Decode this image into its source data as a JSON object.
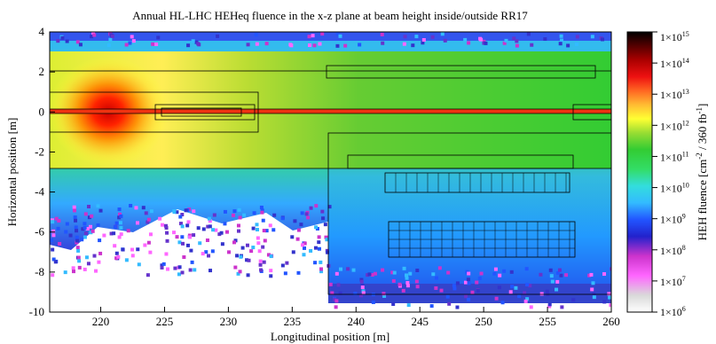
{
  "chart_data": {
    "type": "heatmap",
    "title": "Annual HL-LHC HEHeq fluence in the x-z plane at beam height inside/outside RR17",
    "xlabel": "Longitudinal position [m]",
    "ylabel": "Horizontal position [m]",
    "xlim": [
      216,
      260
    ],
    "ylim": [
      -10,
      4
    ],
    "x_ticks": [
      "220",
      "225",
      "230",
      "235",
      "240",
      "245",
      "250",
      "255",
      "260"
    ],
    "y_ticks": [
      "4",
      "2",
      "0",
      "-2",
      "-4",
      "-6",
      "-8",
      "-10"
    ],
    "colorbar": {
      "label": "HEH fluence [cm",
      "label_sup1": "-2",
      "label_mid": " / 360 fb",
      "label_sup2": "-1",
      "label_end": "]",
      "scale": "log",
      "range": [
        1000000.0,
        1000000000000000.0
      ],
      "ticks": [
        {
          "base": "1×10",
          "exp": "15"
        },
        {
          "base": "1×10",
          "exp": "14"
        },
        {
          "base": "1×10",
          "exp": "13"
        },
        {
          "base": "1×10",
          "exp": "12"
        },
        {
          "base": "1×10",
          "exp": "11"
        },
        {
          "base": "1×10",
          "exp": "10"
        },
        {
          "base": "1×10",
          "exp": "9"
        },
        {
          "base": "1×10",
          "exp": "8"
        },
        {
          "base": "1×10",
          "exp": "7"
        },
        {
          "base": "1×10",
          "exp": "6"
        }
      ],
      "colors": [
        "#ffffff",
        "#d9d9d9",
        "#ff66ff",
        "#cc33cc",
        "#2222cc",
        "#2255ff",
        "#33bbff",
        "#33dddd",
        "#33dd66",
        "#33cc33",
        "#99dd33",
        "#ffff33",
        "#ffbb33",
        "#ff6622",
        "#ee1111",
        "#aa0000",
        "#550000",
        "#000000"
      ]
    },
    "features": {
      "hotspot_center": [
        221,
        0
      ],
      "hotspot_peak_fluence": 10000000000000.0,
      "beam_line_y": 0,
      "tunnel_region": {
        "x": [
          216,
          260
        ],
        "y": [
          -3,
          3
        ]
      },
      "alcove_region": {
        "x": [
          237.5,
          260
        ],
        "y": [
          -9,
          -2
        ]
      }
    }
  }
}
